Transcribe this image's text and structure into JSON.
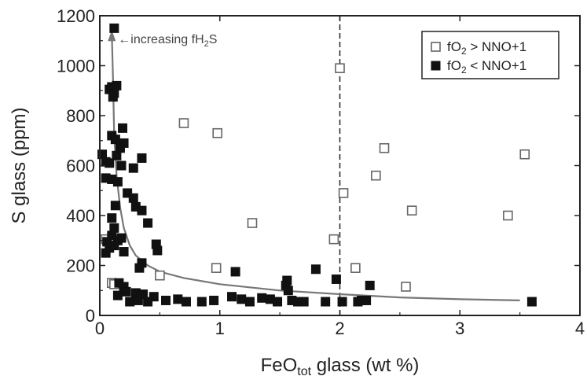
{
  "chart_data": {
    "type": "scatter",
    "title": "",
    "xlabel_main": "FeO",
    "xlabel_sub": "tot",
    "xlabel_rest": " glass (wt %)",
    "ylabel": "S glass (ppm)",
    "xlim": [
      0,
      4
    ],
    "ylim": [
      0,
      1200
    ],
    "xticks": [
      0,
      1,
      2,
      3,
      4
    ],
    "yticks": [
      0,
      200,
      400,
      600,
      800,
      1000,
      1200
    ],
    "grid": false,
    "legend_position": "top-right",
    "vline_x": 2,
    "annotation": {
      "pre": "increasing fH",
      "sub": "2",
      "post": "S"
    },
    "trend_curve": [
      [
        0.1,
        1130
      ],
      [
        0.11,
        950
      ],
      [
        0.12,
        720
      ],
      [
        0.14,
        560
      ],
      [
        0.17,
        430
      ],
      [
        0.2,
        350
      ],
      [
        0.25,
        280
      ],
      [
        0.3,
        240
      ],
      [
        0.4,
        200
      ],
      [
        0.5,
        175
      ],
      [
        0.7,
        150
      ],
      [
        1.0,
        125
      ],
      [
        1.5,
        100
      ],
      [
        2.0,
        85
      ],
      [
        2.5,
        72
      ],
      [
        3.0,
        65
      ],
      [
        3.5,
        60
      ]
    ],
    "series": [
      {
        "name_pre": "fO",
        "name_sub": "2",
        "name_post": " > NNO+1",
        "marker": "open-square",
        "points": [
          [
            0.05,
            305
          ],
          [
            0.1,
            130
          ],
          [
            0.12,
            125
          ],
          [
            0.5,
            160
          ],
          [
            0.7,
            770
          ],
          [
            0.97,
            190
          ],
          [
            0.98,
            730
          ],
          [
            1.27,
            370
          ],
          [
            1.95,
            305
          ],
          [
            2.0,
            990
          ],
          [
            2.03,
            490
          ],
          [
            2.13,
            190
          ],
          [
            2.3,
            560
          ],
          [
            2.37,
            670
          ],
          [
            2.55,
            115
          ],
          [
            2.6,
            420
          ],
          [
            3.4,
            400
          ],
          [
            3.54,
            645
          ]
        ]
      },
      {
        "name_pre": "fO",
        "name_sub": "2",
        "name_post": " < NNO+1",
        "marker": "filled-square",
        "points": [
          [
            0.12,
            1150
          ],
          [
            0.08,
            905
          ],
          [
            0.1,
            915
          ],
          [
            0.12,
            890
          ],
          [
            0.14,
            920
          ],
          [
            0.11,
            875
          ],
          [
            0.19,
            750
          ],
          [
            0.2,
            690
          ],
          [
            0.1,
            720
          ],
          [
            0.13,
            705
          ],
          [
            0.17,
            670
          ],
          [
            0.02,
            645
          ],
          [
            0.05,
            615
          ],
          [
            0.08,
            610
          ],
          [
            0.14,
            640
          ],
          [
            0.18,
            600
          ],
          [
            0.28,
            590
          ],
          [
            0.35,
            630
          ],
          [
            0.05,
            550
          ],
          [
            0.1,
            545
          ],
          [
            0.15,
            535
          ],
          [
            0.23,
            490
          ],
          [
            0.28,
            470
          ],
          [
            0.3,
            435
          ],
          [
            0.35,
            420
          ],
          [
            0.13,
            440
          ],
          [
            0.4,
            370
          ],
          [
            0.1,
            390
          ],
          [
            0.12,
            350
          ],
          [
            0.1,
            320
          ],
          [
            0.15,
            300
          ],
          [
            0.18,
            310
          ],
          [
            0.06,
            295
          ],
          [
            0.08,
            270
          ],
          [
            0.12,
            280
          ],
          [
            0.2,
            255
          ],
          [
            0.05,
            250
          ],
          [
            0.47,
            285
          ],
          [
            0.48,
            260
          ],
          [
            0.35,
            210
          ],
          [
            0.33,
            190
          ],
          [
            0.16,
            130
          ],
          [
            0.2,
            115
          ],
          [
            0.22,
            95
          ],
          [
            0.3,
            90
          ],
          [
            0.36,
            85
          ],
          [
            0.45,
            75
          ],
          [
            0.15,
            80
          ],
          [
            0.25,
            55
          ],
          [
            0.32,
            60
          ],
          [
            0.4,
            55
          ],
          [
            0.55,
            60
          ],
          [
            0.65,
            65
          ],
          [
            0.72,
            55
          ],
          [
            0.85,
            55
          ],
          [
            0.95,
            60
          ],
          [
            1.1,
            75
          ],
          [
            1.13,
            175
          ],
          [
            1.18,
            65
          ],
          [
            1.25,
            55
          ],
          [
            1.35,
            70
          ],
          [
            1.42,
            65
          ],
          [
            1.48,
            55
          ],
          [
            1.55,
            120
          ],
          [
            1.56,
            140
          ],
          [
            1.57,
            100
          ],
          [
            1.6,
            60
          ],
          [
            1.65,
            55
          ],
          [
            1.7,
            55
          ],
          [
            1.8,
            185
          ],
          [
            1.88,
            55
          ],
          [
            1.97,
            145
          ],
          [
            2.02,
            55
          ],
          [
            2.15,
            55
          ],
          [
            2.18,
            60
          ],
          [
            2.22,
            60
          ],
          [
            2.25,
            120
          ],
          [
            3.6,
            55
          ]
        ]
      }
    ]
  }
}
